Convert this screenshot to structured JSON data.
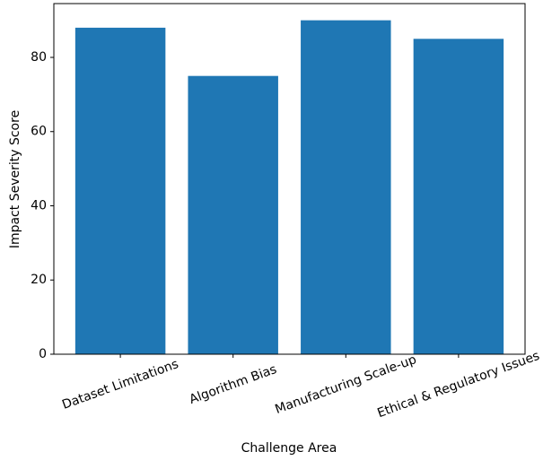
{
  "chart_data": {
    "type": "bar",
    "categories": [
      "Dataset Limitations",
      "Algorithm Bias",
      "Manufacturing Scale-up",
      "Ethical & Regulatory Issues"
    ],
    "values": [
      88,
      75,
      90,
      85
    ],
    "color": "#1f77b4",
    "xlabel": "Challenge Area",
    "ylabel": "Impact Severity Score",
    "ylim": [
      0,
      94.5
    ],
    "yticks": [
      0,
      20,
      40,
      60,
      80
    ],
    "grid": false
  }
}
